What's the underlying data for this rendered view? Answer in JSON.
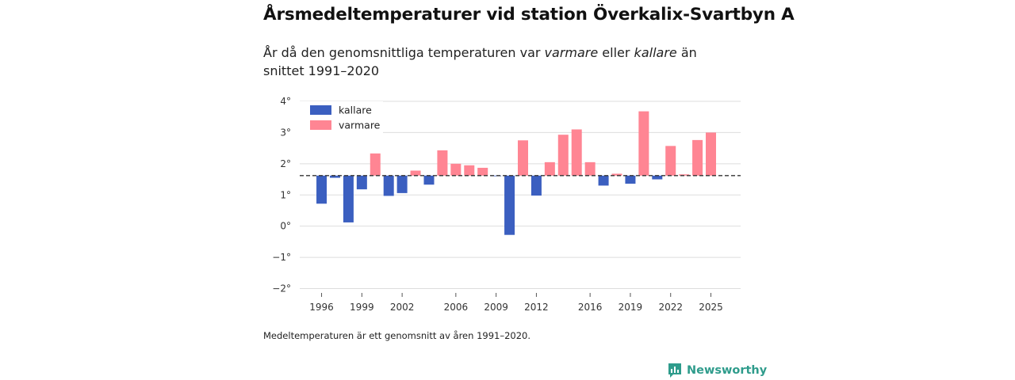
{
  "title": "Årsmedeltemperaturer vid station Överkalix-Svartbyn A",
  "subtitle": {
    "part1": "År då den genomsnittliga temperaturen var ",
    "warmer_word": "varmare",
    "part2": " eller ",
    "colder_word": "kallare",
    "part3": " än snittet 1991–2020"
  },
  "footnote": "Medeltemperaturen är ett genomsnitt av åren 1991–2020.",
  "brand": "Newsworthy",
  "colors": {
    "cold": "#3b5fc0",
    "warm": "#ff8593",
    "grid": "#dddddd",
    "baseline": "#333333",
    "brand": "#2f9c8c"
  },
  "chart_data": {
    "type": "bar",
    "title": "Årsmedeltemperaturer vid station Överkalix-Svartbyn A",
    "xlabel": "",
    "ylabel": "",
    "baseline": 1.62,
    "ylim": [
      -2,
      4
    ],
    "yticks": [
      4,
      3,
      2,
      1,
      0,
      -1,
      -2
    ],
    "ytick_labels": [
      "4°",
      "3°",
      "2°",
      "1°",
      "0°",
      "−1°",
      "−2°"
    ],
    "xticks": [
      1996,
      1999,
      2002,
      2006,
      2009,
      2012,
      2016,
      2019,
      2022,
      2025
    ],
    "legend": [
      {
        "key": "cold",
        "label": "kallare"
      },
      {
        "key": "warm",
        "label": "varmare"
      }
    ],
    "legend_position": "top-left",
    "years": [
      1996,
      1997,
      1998,
      1999,
      2000,
      2001,
      2002,
      2003,
      2004,
      2005,
      2006,
      2007,
      2008,
      2009,
      2010,
      2011,
      2012,
      2013,
      2014,
      2015,
      2016,
      2017,
      2018,
      2019,
      2020,
      2021,
      2022,
      2023,
      2024,
      2025
    ],
    "values": [
      0.72,
      1.55,
      0.12,
      1.18,
      2.33,
      0.97,
      1.06,
      1.78,
      1.33,
      2.43,
      2.0,
      1.95,
      1.87,
      1.6,
      -0.28,
      2.75,
      0.98,
      2.05,
      2.93,
      3.1,
      2.05,
      1.3,
      1.68,
      1.36,
      3.68,
      1.5,
      2.57,
      1.66,
      2.76,
      3.0
    ]
  }
}
